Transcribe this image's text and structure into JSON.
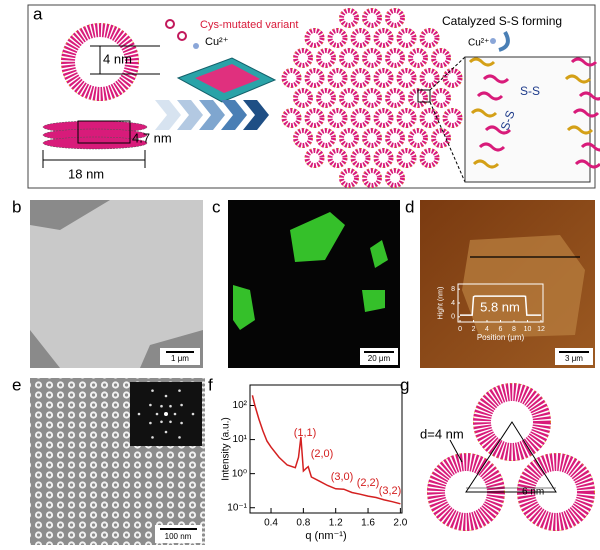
{
  "panel_labels": [
    "a",
    "b",
    "c",
    "d",
    "e",
    "f",
    "g"
  ],
  "panel_a": {
    "variant_label": "Cys-mutated variant",
    "ion_label": "Cu²⁺",
    "ring_diameter": "4 nm",
    "disk_height": "4.7 nm",
    "disk_width": "18 nm",
    "catalysis_title": "Catalyzed S-S forming",
    "catalysis_ion": "Cu²⁺",
    "bond_labels": [
      "S-S",
      "S-S"
    ]
  },
  "scale_bars": {
    "b": "1 μm",
    "c": "20 μm",
    "d": "3 μm",
    "e": "100 nm"
  },
  "panel_g": {
    "spacing_label": "d=4 nm",
    "distance_label": "6 nm"
  },
  "chart_data": [
    {
      "type": "line",
      "xlabel": "q (nm⁻¹)",
      "ylabel": "Intensity (a.u.)",
      "log_y": true,
      "x": [
        0.17,
        0.2,
        0.25,
        0.3,
        0.35,
        0.4,
        0.5,
        0.6,
        0.7,
        0.74,
        0.77,
        0.8,
        0.83,
        0.86,
        0.9,
        1.0,
        1.1,
        1.2,
        1.3,
        1.4,
        1.5,
        1.6,
        1.7,
        1.8,
        1.9,
        2.0
      ],
      "series": [
        {
          "color": "#d42020",
          "values": [
            200,
            100,
            40,
            18,
            9,
            6,
            3,
            1.8,
            1.5,
            3,
            12,
            1.2,
            1.4,
            1.6,
            0.8,
            0.6,
            0.45,
            0.36,
            0.35,
            0.28,
            0.25,
            0.22,
            0.2,
            0.17,
            0.15,
            0.13
          ]
        }
      ],
      "xlim": [
        0.14,
        2.02
      ],
      "ylim": [
        0.07,
        400
      ],
      "xticks": [
        0.4,
        0.8,
        1.2,
        1.6,
        {
          "value": 2,
          "label": "2.0"
        }
      ],
      "yticks": [
        {
          "value": 0.1,
          "label": "10⁻¹"
        },
        {
          "value": 1,
          "label": "10⁰"
        },
        {
          "value": 10,
          "label": "10¹"
        },
        {
          "value": 100,
          "label": "10²"
        }
      ],
      "annotations": [
        "(1,1)",
        "(2,0)",
        "(3,0)",
        "(2,2)",
        "(3,2)"
      ]
    },
    {
      "type": "line",
      "xlabel": "Position (μm)",
      "ylabel": "Hight (nm)",
      "log_y": false,
      "annotation": "5.8 nm",
      "x": [
        0,
        1.8,
        2,
        2.2,
        5,
        9.5,
        9.7,
        9.9,
        12
      ],
      "series": [
        {
          "color": "#ffffff",
          "values": [
            0.5,
            0.5,
            5.8,
            6,
            6,
            6,
            5.9,
            0.5,
            0.5
          ]
        }
      ],
      "xlim": [
        -0.3,
        12.3
      ],
      "ylim": [
        -1.5,
        9.5
      ],
      "xticks": [
        0,
        2,
        4,
        6,
        8,
        10,
        12
      ],
      "yticks": [
        0,
        4,
        8
      ]
    }
  ]
}
